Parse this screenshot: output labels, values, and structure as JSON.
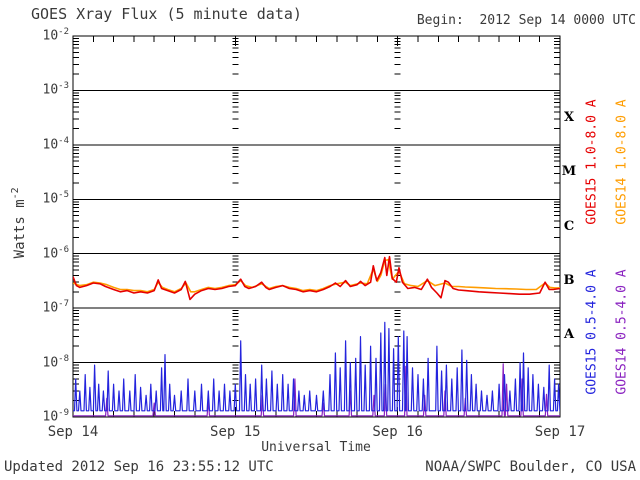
{
  "header": {
    "title": "GOES Xray Flux (5 minute data)",
    "begin": "Begin:  2012 Sep 14 0000 UTC"
  },
  "footer": {
    "updated": "Updated 2012 Sep 16 23:55:12 UTC",
    "source": "NOAA/SWPC Boulder, CO USA"
  },
  "chart_data": {
    "type": "line",
    "title": "GOES Xray Flux (5 minute data)",
    "xlabel": "Universal Time",
    "ylabel": {
      "base": "Watts m",
      "exp": "-2"
    },
    "x_range_hours": [
      0,
      72
    ],
    "xtick_labels": [
      "Sep 14",
      "Sep 15",
      "Sep 16",
      "Sep 17"
    ],
    "ytick_exponents": [
      -2,
      -3,
      -4,
      -5,
      -6,
      -7,
      -8,
      -9
    ],
    "ylim": [
      1e-09,
      0.01
    ],
    "grid": {
      "decade_lines": true,
      "day_lines_hours": [
        24,
        48
      ],
      "minor_x_step_hours": 3
    },
    "class_letters": [
      "X",
      "M",
      "C",
      "B",
      "A"
    ],
    "legend": [
      {
        "label": "GOES15 1.0-8.0 A",
        "color": "#e60000"
      },
      {
        "label": "GOES14 1.0-8.0 A",
        "color": "#ff9d00"
      },
      {
        "label": "GOES15 0.5-4.0 A",
        "color": "#2424dd"
      },
      {
        "label": "GOES14 0.5-4.0 A",
        "color": "#8a22c0"
      }
    ],
    "series": [
      {
        "name": "GOES14 1.0-8.0 A",
        "color": "#ff9d00",
        "width": 1.6,
        "points": [
          [
            0,
            2.9e-07
          ],
          [
            1,
            2.6e-07
          ],
          [
            2,
            2.7e-07
          ],
          [
            3,
            3e-07
          ],
          [
            4,
            2.9e-07
          ],
          [
            5,
            2.7e-07
          ],
          [
            6,
            2.4e-07
          ],
          [
            7,
            2.2e-07
          ],
          [
            8,
            2.2e-07
          ],
          [
            9,
            2.1e-07
          ],
          [
            10,
            2.1e-07
          ],
          [
            11,
            2e-07
          ],
          [
            12,
            2.2e-07
          ],
          [
            12.6,
            3e-07
          ],
          [
            13.2,
            2.4e-07
          ],
          [
            14,
            2.2e-07
          ],
          [
            15,
            2e-07
          ],
          [
            16,
            2.3e-07
          ],
          [
            16.7,
            2.9e-07
          ],
          [
            17.4,
            2e-07
          ],
          [
            18,
            2e-07
          ],
          [
            19,
            2.2e-07
          ],
          [
            20,
            2.4e-07
          ],
          [
            21,
            2.3e-07
          ],
          [
            22,
            2.4e-07
          ],
          [
            23,
            2.6e-07
          ],
          [
            24,
            2.7e-07
          ],
          [
            24.8,
            3.2e-07
          ],
          [
            25.5,
            2.6e-07
          ],
          [
            26.5,
            2.4e-07
          ],
          [
            27.9,
            2.8e-07
          ],
          [
            29,
            2.3e-07
          ],
          [
            30,
            2.5e-07
          ],
          [
            31,
            2.6e-07
          ],
          [
            32,
            2.4e-07
          ],
          [
            33,
            2.3e-07
          ],
          [
            34,
            2.1e-07
          ],
          [
            35,
            2.2e-07
          ],
          [
            36,
            2.1e-07
          ],
          [
            37,
            2.3e-07
          ],
          [
            38,
            2.6e-07
          ],
          [
            39,
            2.8e-07
          ],
          [
            40.3,
            3e-07
          ],
          [
            41,
            2.6e-07
          ],
          [
            42.5,
            2.9e-07
          ],
          [
            43.5,
            2.8e-07
          ],
          [
            44.4,
            5.2e-07
          ],
          [
            45,
            3.1e-07
          ],
          [
            45.5,
            4e-07
          ],
          [
            46.1,
            7.5e-07
          ],
          [
            46.6,
            7.8e-07
          ],
          [
            47.2,
            3.4e-07
          ],
          [
            48.2,
            4.8e-07
          ],
          [
            49,
            2.8e-07
          ],
          [
            50,
            2.6e-07
          ],
          [
            51,
            2.5e-07
          ],
          [
            52.4,
            3.2e-07
          ],
          [
            53.5,
            2.6e-07
          ],
          [
            55.0,
            2.9e-07
          ],
          [
            56,
            2.5e-07
          ],
          [
            57,
            2.5e-07
          ],
          [
            58,
            2.45e-07
          ],
          [
            59.5,
            2.4e-07
          ],
          [
            61,
            2.35e-07
          ],
          [
            62.5,
            2.3e-07
          ],
          [
            64,
            2.28e-07
          ],
          [
            65.5,
            2.25e-07
          ],
          [
            67,
            2.2e-07
          ],
          [
            68.5,
            2.2e-07
          ],
          [
            69.8,
            2.9e-07
          ],
          [
            70.5,
            2.4e-07
          ],
          [
            71.2,
            2.35e-07
          ],
          [
            72,
            2.35e-07
          ]
        ]
      },
      {
        "name": "GOES15 1.0-8.0 A",
        "color": "#e60000",
        "width": 1.6,
        "points": [
          [
            0,
            3.8e-07
          ],
          [
            0.5,
            2.6e-07
          ],
          [
            1,
            2.4e-07
          ],
          [
            2,
            2.6e-07
          ],
          [
            3,
            2.9e-07
          ],
          [
            4,
            2.8e-07
          ],
          [
            4.8,
            2.5e-07
          ],
          [
            6,
            2.2e-07
          ],
          [
            7,
            2e-07
          ],
          [
            8,
            2.1e-07
          ],
          [
            9,
            1.9e-07
          ],
          [
            10,
            2e-07
          ],
          [
            11,
            1.9e-07
          ],
          [
            12,
            2.1e-07
          ],
          [
            12.6,
            3.3e-07
          ],
          [
            13.1,
            2.3e-07
          ],
          [
            14,
            2.1e-07
          ],
          [
            15,
            1.9e-07
          ],
          [
            16,
            2.2e-07
          ],
          [
            16.6,
            3.1e-07
          ],
          [
            17.3,
            1.45e-07
          ],
          [
            18,
            1.8e-07
          ],
          [
            19,
            2.1e-07
          ],
          [
            20,
            2.3e-07
          ],
          [
            21,
            2.2e-07
          ],
          [
            22,
            2.3e-07
          ],
          [
            23,
            2.5e-07
          ],
          [
            24,
            2.6e-07
          ],
          [
            24.8,
            3.4e-07
          ],
          [
            25.4,
            2.5e-07
          ],
          [
            26,
            2.3e-07
          ],
          [
            27,
            2.5e-07
          ],
          [
            27.9,
            3e-07
          ],
          [
            28.5,
            2.4e-07
          ],
          [
            29,
            2.2e-07
          ],
          [
            30,
            2.4e-07
          ],
          [
            31,
            2.6e-07
          ],
          [
            32,
            2.3e-07
          ],
          [
            33,
            2.2e-07
          ],
          [
            34,
            2e-07
          ],
          [
            35,
            2.1e-07
          ],
          [
            36,
            2e-07
          ],
          [
            37,
            2.2e-07
          ],
          [
            38,
            2.5e-07
          ],
          [
            38.8,
            2.9e-07
          ],
          [
            39.5,
            2.5e-07
          ],
          [
            40.3,
            3.2e-07
          ],
          [
            41,
            2.5e-07
          ],
          [
            42,
            2.7e-07
          ],
          [
            42.5,
            3.1e-07
          ],
          [
            43.2,
            2.6e-07
          ],
          [
            44,
            3e-07
          ],
          [
            44.4,
            6e-07
          ],
          [
            44.9,
            3.2e-07
          ],
          [
            45.5,
            4.5e-07
          ],
          [
            46.1,
            8.5e-07
          ],
          [
            46.4,
            4e-07
          ],
          [
            46.8,
            8.8e-07
          ],
          [
            47.2,
            3.5e-07
          ],
          [
            47.8,
            3e-07
          ],
          [
            48.2,
            5.5e-07
          ],
          [
            48.7,
            3e-07
          ],
          [
            49.5,
            2.3e-07
          ],
          [
            50.5,
            2.4e-07
          ],
          [
            51.5,
            2.2e-07
          ],
          [
            52.4,
            3.4e-07
          ],
          [
            53.0,
            2.4e-07
          ],
          [
            53.8,
            1.9e-07
          ],
          [
            54.4,
            1.55e-07
          ],
          [
            55.0,
            3.2e-07
          ],
          [
            55.5,
            3e-07
          ],
          [
            56.2,
            2.3e-07
          ],
          [
            57,
            2.15e-07
          ],
          [
            58,
            2.1e-07
          ],
          [
            59,
            2.05e-07
          ],
          [
            60,
            2e-07
          ],
          [
            61.5,
            1.95e-07
          ],
          [
            63,
            1.9e-07
          ],
          [
            64.5,
            1.85e-07
          ],
          [
            66,
            1.8e-07
          ],
          [
            67.5,
            1.8e-07
          ],
          [
            69,
            1.9e-07
          ],
          [
            69.8,
            3e-07
          ],
          [
            70.4,
            2.2e-07
          ],
          [
            71,
            2.2e-07
          ],
          [
            72,
            2.3e-07
          ]
        ]
      },
      {
        "name": "GOES14 0.5-4.0 A",
        "color": "#8a22c0",
        "width": 1.2,
        "baseline": 1.05e-09,
        "spikes": [
          [
            5.0,
            2.2e-09
          ],
          [
            12.0,
            1.8e-09
          ],
          [
            20.0,
            2e-09
          ],
          [
            28.0,
            2.5e-09
          ],
          [
            32.8,
            5e-09
          ],
          [
            37.0,
            1.8e-09
          ],
          [
            41.0,
            3e-09
          ],
          [
            44.5,
            2.5e-09
          ],
          [
            46.2,
            4e-09
          ],
          [
            49.2,
            8.5e-09
          ],
          [
            52.0,
            2.5e-09
          ],
          [
            55.0,
            3e-09
          ],
          [
            58.0,
            2.2e-09
          ],
          [
            63.6,
            9.5e-09
          ],
          [
            64.1,
            4e-09
          ],
          [
            66.4,
            5e-09
          ],
          [
            70.0,
            2.6e-09
          ]
        ]
      },
      {
        "name": "GOES15 0.5-4.0 A",
        "color": "#2424dd",
        "width": 1.2,
        "baseline": 1.3e-09,
        "spikes": [
          [
            0.4,
            5e-09
          ],
          [
            1.0,
            3e-09
          ],
          [
            1.8,
            6e-09
          ],
          [
            2.5,
            3.5e-09
          ],
          [
            3.2,
            9e-09
          ],
          [
            3.8,
            4e-09
          ],
          [
            4.5,
            3e-09
          ],
          [
            5.2,
            7e-09
          ],
          [
            6.0,
            4e-09
          ],
          [
            6.8,
            3e-09
          ],
          [
            7.5,
            5e-09
          ],
          [
            8.4,
            3e-09
          ],
          [
            9.2,
            6e-09
          ],
          [
            10.0,
            3.5e-09
          ],
          [
            10.8,
            2.5e-09
          ],
          [
            11.5,
            4e-09
          ],
          [
            12.3,
            3e-09
          ],
          [
            13.1,
            8e-09
          ],
          [
            13.6,
            1.4e-08
          ],
          [
            14.3,
            4e-09
          ],
          [
            15.0,
            2.5e-09
          ],
          [
            16.0,
            3e-09
          ],
          [
            17.0,
            5e-09
          ],
          [
            18.0,
            3e-09
          ],
          [
            19.0,
            4e-09
          ],
          [
            20.0,
            3e-09
          ],
          [
            20.8,
            5e-09
          ],
          [
            21.6,
            3e-09
          ],
          [
            22.4,
            4e-09
          ],
          [
            23.2,
            3e-09
          ],
          [
            24.0,
            4e-09
          ],
          [
            24.8,
            2.5e-08
          ],
          [
            25.5,
            6e-09
          ],
          [
            26.2,
            4e-09
          ],
          [
            27.0,
            5e-09
          ],
          [
            27.9,
            9e-09
          ],
          [
            28.6,
            5e-09
          ],
          [
            29.4,
            7e-09
          ],
          [
            30.2,
            4e-09
          ],
          [
            31.0,
            6e-09
          ],
          [
            31.8,
            4e-09
          ],
          [
            32.6,
            5e-09
          ],
          [
            33.4,
            3e-09
          ],
          [
            34.2,
            2.5e-09
          ],
          [
            35.0,
            3e-09
          ],
          [
            36.0,
            2.5e-09
          ],
          [
            37.0,
            3e-09
          ],
          [
            38.0,
            6e-09
          ],
          [
            38.8,
            1.5e-08
          ],
          [
            39.5,
            8e-09
          ],
          [
            40.3,
            2.5e-08
          ],
          [
            41.0,
            1e-08
          ],
          [
            41.8,
            1.2e-08
          ],
          [
            42.5,
            3e-08
          ],
          [
            43.2,
            9e-09
          ],
          [
            44.0,
            2e-08
          ],
          [
            44.8,
            1.2e-08
          ],
          [
            45.5,
            3.5e-08
          ],
          [
            46.1,
            5.5e-08
          ],
          [
            46.7,
            4.2e-08
          ],
          [
            47.4,
            1.8e-08
          ],
          [
            48.1,
            3e-08
          ],
          [
            48.9,
            3.8e-08
          ],
          [
            49.4,
            3e-08
          ],
          [
            50.2,
            8e-09
          ],
          [
            51.0,
            6e-09
          ],
          [
            51.8,
            5e-09
          ],
          [
            52.5,
            1.2e-08
          ],
          [
            53.8,
            2e-08
          ],
          [
            54.5,
            7e-09
          ],
          [
            55.2,
            9e-09
          ],
          [
            56.0,
            5e-09
          ],
          [
            56.8,
            8e-09
          ],
          [
            57.5,
            1.7e-08
          ],
          [
            58.2,
            1.1e-08
          ],
          [
            58.9,
            6e-09
          ],
          [
            59.6,
            4e-09
          ],
          [
            60.4,
            3e-09
          ],
          [
            61.2,
            2.5e-09
          ],
          [
            62.0,
            3e-09
          ],
          [
            63.0,
            4e-09
          ],
          [
            63.8,
            6e-09
          ],
          [
            64.6,
            3e-09
          ],
          [
            65.4,
            5e-09
          ],
          [
            66.1,
            1e-08
          ],
          [
            66.6,
            1.5e-08
          ],
          [
            67.3,
            8e-09
          ],
          [
            68.0,
            6e-09
          ],
          [
            68.8,
            4e-09
          ],
          [
            69.6,
            3.5e-09
          ],
          [
            70.4,
            9e-09
          ],
          [
            71.2,
            5e-09
          ],
          [
            71.8,
            4e-09
          ]
        ]
      }
    ]
  }
}
